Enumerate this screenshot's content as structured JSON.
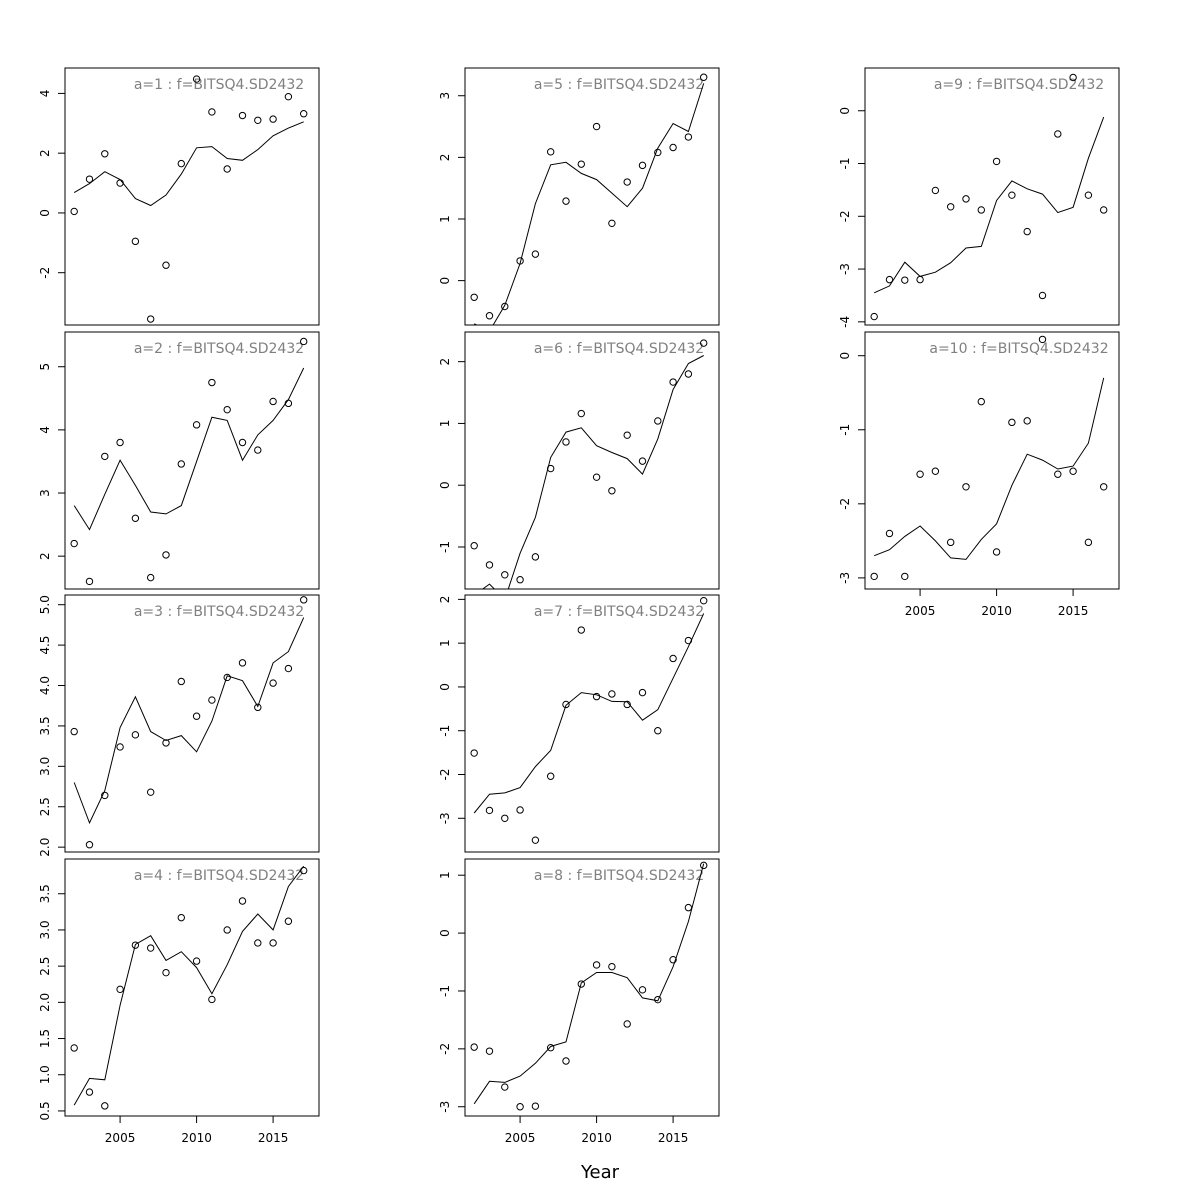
{
  "xlabel": "Year",
  "chart_data": [
    {
      "title": "a=1  :  f=BITSQ4.SD2432",
      "type": "scatter",
      "x": [
        2002,
        2003,
        2004,
        2005,
        2006,
        2007,
        2008,
        2009,
        2010,
        2011,
        2012,
        2013,
        2014,
        2015,
        2016,
        2017
      ],
      "observed": [
        0.05,
        1.13,
        1.98,
        1.0,
        -0.95,
        -3.55,
        -1.75,
        1.65,
        4.48,
        3.38,
        1.47,
        3.26,
        3.1,
        3.14,
        3.89,
        3.32
      ],
      "fitted": [
        0.68,
        0.98,
        1.38,
        1.12,
        0.48,
        0.25,
        0.6,
        1.3,
        2.18,
        2.22,
        1.82,
        1.76,
        2.12,
        2.58,
        2.84,
        3.05
      ],
      "ylim": [
        -3.75,
        4.85
      ],
      "yticks": [
        -2,
        0,
        2,
        4
      ],
      "xticks": [],
      "xticklabels": []
    },
    {
      "title": "a=2  :  f=BITSQ4.SD2432",
      "type": "scatter",
      "x": [
        2002,
        2003,
        2004,
        2005,
        2006,
        2007,
        2008,
        2009,
        2010,
        2011,
        2012,
        2013,
        2014,
        2015,
        2016,
        2017
      ],
      "observed": [
        2.2,
        1.6,
        3.58,
        3.8,
        2.6,
        1.66,
        2.02,
        3.46,
        4.08,
        4.75,
        4.32,
        3.8,
        3.68,
        4.45,
        4.42,
        5.4
      ],
      "fitted": [
        2.8,
        2.42,
        2.98,
        3.52,
        3.12,
        2.7,
        2.67,
        2.8,
        3.5,
        4.2,
        4.15,
        3.52,
        3.92,
        4.15,
        4.48,
        4.98
      ],
      "ylim": [
        1.48,
        5.55
      ],
      "yticks": [
        2,
        3,
        4,
        5
      ],
      "xticks": [],
      "xticklabels": []
    },
    {
      "title": "a=3  :  f=BITSQ4.SD2432",
      "type": "scatter",
      "x": [
        2002,
        2003,
        2004,
        2005,
        2006,
        2007,
        2008,
        2009,
        2010,
        2011,
        2012,
        2013,
        2014,
        2015,
        2016,
        2017
      ],
      "observed": [
        3.43,
        2.03,
        2.64,
        3.24,
        3.39,
        2.68,
        3.29,
        4.05,
        3.62,
        3.82,
        4.1,
        4.28,
        3.73,
        4.03,
        4.21,
        5.06
      ],
      "fitted": [
        2.8,
        2.3,
        2.7,
        3.48,
        3.86,
        3.43,
        3.32,
        3.38,
        3.18,
        3.56,
        4.12,
        4.06,
        3.74,
        4.28,
        4.42,
        4.84
      ],
      "ylim": [
        1.94,
        5.12
      ],
      "yticks": [
        2.0,
        2.5,
        3.0,
        3.5,
        4.0,
        4.5,
        5.0
      ],
      "xticks": [],
      "xticklabels": []
    },
    {
      "title": "a=4  :  f=BITSQ4.SD2432",
      "type": "scatter",
      "x": [
        2002,
        2003,
        2004,
        2005,
        2006,
        2007,
        2008,
        2009,
        2010,
        2011,
        2012,
        2013,
        2014,
        2015,
        2016,
        2017
      ],
      "observed": [
        1.37,
        0.76,
        0.57,
        2.18,
        2.79,
        2.75,
        2.41,
        3.17,
        2.57,
        2.04,
        3.0,
        3.4,
        2.82,
        2.82,
        3.12,
        3.82
      ],
      "fitted": [
        0.58,
        0.95,
        0.93,
        1.96,
        2.8,
        2.92,
        2.58,
        2.7,
        2.48,
        2.12,
        2.52,
        2.98,
        3.22,
        3.0,
        3.6,
        3.88
      ],
      "ylim": [
        0.43,
        3.98
      ],
      "yticks": [
        0.5,
        1.0,
        1.5,
        2.0,
        2.5,
        3.0,
        3.5
      ],
      "xticks": [
        2005,
        2010,
        2015
      ],
      "xticklabels": [
        "2005",
        "2010",
        "2015"
      ]
    },
    {
      "title": "a=5  :  f=BITSQ4.SD2432",
      "type": "scatter",
      "x": [
        2002,
        2003,
        2004,
        2005,
        2006,
        2007,
        2008,
        2009,
        2010,
        2011,
        2012,
        2013,
        2014,
        2015,
        2016,
        2017
      ],
      "observed": [
        -0.27,
        -0.57,
        -0.42,
        0.32,
        0.43,
        2.09,
        1.29,
        1.89,
        2.5,
        0.93,
        1.6,
        1.87,
        2.08,
        2.16,
        2.33,
        3.3
      ],
      "fitted": [
        -0.7,
        -0.82,
        -0.4,
        0.28,
        1.25,
        1.88,
        1.92,
        1.74,
        1.64,
        1.42,
        1.2,
        1.5,
        2.15,
        2.55,
        2.42,
        3.2
      ],
      "ylim": [
        -0.72,
        3.45
      ],
      "yticks": [
        0,
        1,
        2,
        3
      ],
      "xticks": [],
      "xticklabels": []
    },
    {
      "title": "a=6  :  f=BITSQ4.SD2432",
      "type": "scatter",
      "x": [
        2002,
        2003,
        2004,
        2005,
        2006,
        2007,
        2008,
        2009,
        2010,
        2011,
        2012,
        2013,
        2014,
        2015,
        2016,
        2017
      ],
      "observed": [
        -0.98,
        -1.29,
        -1.45,
        -1.53,
        -1.16,
        0.27,
        0.7,
        1.16,
        0.13,
        -0.09,
        0.81,
        0.39,
        1.04,
        1.67,
        1.8,
        2.3
      ],
      "fitted": [
        -1.78,
        -1.6,
        -1.85,
        -1.1,
        -0.52,
        0.45,
        0.86,
        0.93,
        0.64,
        0.53,
        0.43,
        0.18,
        0.75,
        1.55,
        1.97,
        2.1
      ],
      "ylim": [
        -1.68,
        2.48
      ],
      "yticks": [
        -1,
        0,
        1,
        2
      ],
      "xticks": [],
      "xticklabels": []
    },
    {
      "title": "a=7  :  f=BITSQ4.SD2432",
      "type": "scatter",
      "x": [
        2002,
        2003,
        2004,
        2005,
        2006,
        2007,
        2008,
        2009,
        2010,
        2011,
        2012,
        2013,
        2014,
        2015,
        2016,
        2017
      ],
      "observed": [
        -1.51,
        -2.82,
        -3.0,
        -2.81,
        -3.5,
        -2.04,
        -0.4,
        1.3,
        -0.22,
        -0.16,
        -0.4,
        -0.13,
        -1.0,
        0.65,
        1.06,
        1.97
      ],
      "fitted": [
        -2.88,
        -2.45,
        -2.42,
        -2.3,
        -1.82,
        -1.45,
        -0.42,
        -0.13,
        -0.18,
        -0.33,
        -0.34,
        -0.76,
        -0.52,
        0.2,
        0.92,
        1.68
      ],
      "ylim": [
        -3.77,
        2.1
      ],
      "yticks": [
        -3,
        -2,
        -1,
        0,
        1,
        2
      ],
      "xticks": [],
      "xticklabels": []
    },
    {
      "title": "a=8  :  f=BITSQ4.SD2432",
      "type": "scatter",
      "x": [
        2002,
        2003,
        2004,
        2005,
        2006,
        2007,
        2008,
        2009,
        2010,
        2011,
        2012,
        2013,
        2014,
        2015,
        2016,
        2017
      ],
      "observed": [
        -1.97,
        -2.04,
        -2.66,
        -3.0,
        -2.99,
        -1.98,
        -2.21,
        -0.88,
        -0.55,
        -0.58,
        -1.57,
        -0.98,
        -1.15,
        -0.46,
        0.44,
        1.17
      ],
      "fitted": [
        -2.95,
        -2.56,
        -2.58,
        -2.47,
        -2.25,
        -1.96,
        -1.88,
        -0.86,
        -0.68,
        -0.68,
        -0.77,
        -1.12,
        -1.17,
        -0.58,
        0.2,
        1.2
      ],
      "ylim": [
        -3.16,
        1.28
      ],
      "yticks": [
        -3,
        -2,
        -1,
        0,
        1
      ],
      "xticks": [
        2005,
        2010,
        2015
      ],
      "xticklabels": [
        "2005",
        "2010",
        "2015"
      ]
    },
    {
      "title": "a=9  :  f=BITSQ4.SD2432",
      "type": "scatter",
      "x": [
        2002,
        2003,
        2004,
        2005,
        2006,
        2007,
        2008,
        2009,
        2010,
        2011,
        2012,
        2013,
        2014,
        2015,
        2016,
        2017
      ],
      "observed": [
        -3.9,
        -3.2,
        -3.21,
        -3.2,
        -1.51,
        -1.82,
        -1.67,
        -1.88,
        -0.96,
        -1.6,
        -2.29,
        -3.5,
        -0.44,
        0.63,
        -1.6,
        -1.88
      ],
      "fitted": [
        -3.45,
        -3.32,
        -2.87,
        -3.14,
        -3.06,
        -2.88,
        -2.6,
        -2.57,
        -1.7,
        -1.33,
        -1.48,
        -1.58,
        -1.93,
        -1.83,
        -0.9,
        -0.12
      ],
      "ylim": [
        -4.06,
        0.81
      ],
      "yticks": [
        -4,
        -3,
        -2,
        -1,
        0
      ],
      "xticks": [],
      "xticklabels": []
    },
    {
      "title": "a=10  :  f=BITSQ4.SD2432",
      "type": "scatter",
      "x": [
        2002,
        2003,
        2004,
        2005,
        2006,
        2007,
        2008,
        2009,
        2010,
        2011,
        2012,
        2013,
        2014,
        2015,
        2016,
        2017
      ],
      "observed": [
        -2.98,
        -2.4,
        -2.98,
        -1.6,
        -1.56,
        -2.52,
        -1.77,
        -0.62,
        -2.65,
        -0.9,
        -0.88,
        0.22,
        -1.6,
        -1.56,
        -2.52,
        -1.77
      ],
      "fitted": [
        -2.7,
        -2.62,
        -2.44,
        -2.3,
        -2.5,
        -2.73,
        -2.75,
        -2.48,
        -2.27,
        -1.75,
        -1.33,
        -1.41,
        -1.53,
        -1.49,
        -1.18,
        -0.3
      ],
      "ylim": [
        -3.15,
        0.32
      ],
      "yticks": [
        -3.0,
        -2.0,
        -1.0,
        0.0
      ],
      "xticks": [
        2005,
        2010,
        2015
      ],
      "xticklabels": [
        "2005",
        "2010",
        "2015"
      ]
    }
  ]
}
